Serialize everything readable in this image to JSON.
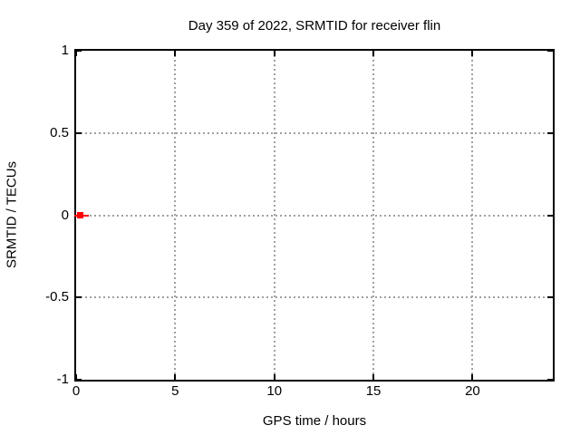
{
  "title": "Day 359 of 2022, SRMTID for receiver flin",
  "chart_data": {
    "type": "scatter",
    "title": "Day 359 of 2022, SRMTID for receiver flin",
    "xlabel": "GPS time / hours",
    "ylabel": "SRMTID / TECUs",
    "xlim": [
      0,
      24.05
    ],
    "ylim": [
      -1,
      1
    ],
    "xticks": [
      0,
      5,
      10,
      15,
      20
    ],
    "yticks": [
      1,
      0.5,
      0,
      -0.5,
      -1
    ],
    "grid_xticks": [
      5,
      10,
      15,
      20
    ],
    "grid_yticks": [
      0.5,
      0,
      -0.5
    ],
    "grid": true,
    "legend_position": "none",
    "series": [
      {
        "name": "SRMTID",
        "color": "#ff0000",
        "marker": "filled-square",
        "marker_size_px": 7,
        "points": [
          [
            0.2,
            0.0
          ]
        ],
        "segment": {
          "x_start": -0.1,
          "x_end": 0.65,
          "y": 0.0
        }
      }
    ]
  },
  "colors": {
    "background": "#ffffff",
    "border": "#000000",
    "grid": "#a0a0a0",
    "text": "#000000",
    "series": "#ff0000"
  }
}
